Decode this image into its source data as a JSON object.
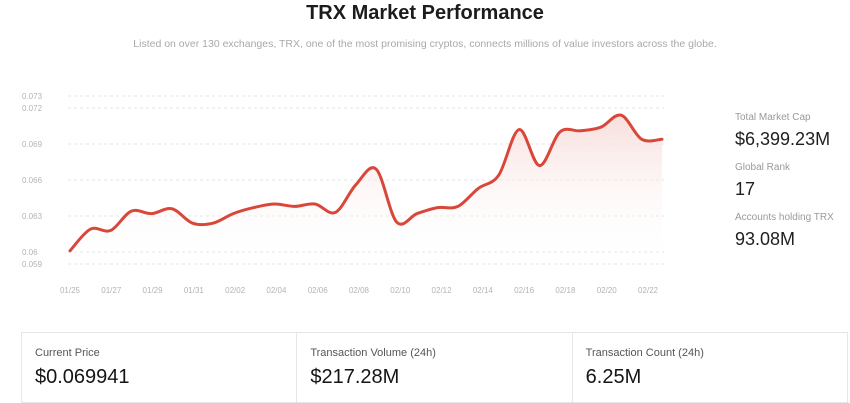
{
  "header": {
    "title": "TRX Market Performance",
    "subtitle": "Listed on over 130 exchanges, TRX, one of the most promising cryptos, connects millions of value investors across the globe."
  },
  "side_stats": [
    {
      "label": "Total Market Cap",
      "value": "$6,399.23M"
    },
    {
      "label": "Global Rank",
      "value": "17"
    },
    {
      "label": "Accounts holding TRX",
      "value": "93.08M"
    }
  ],
  "cards": [
    {
      "label": "Current Price",
      "value": "$0.069941"
    },
    {
      "label": "Transaction Volume (24h)",
      "value": "$217.28M"
    },
    {
      "label": "Transaction Count (24h)",
      "value": "6.25M"
    }
  ],
  "colors": {
    "line": "#d9473b",
    "grid": "#e5e5e5",
    "area_top": "#f6d9d6"
  },
  "chart_data": {
    "type": "area",
    "title": "",
    "xlabel": "",
    "ylabel": "",
    "ylim": [
      0.059,
      0.073
    ],
    "yticks": [
      "0.073",
      "0.072",
      "0.069",
      "0.066",
      "0.063",
      "0.06",
      "0.059"
    ],
    "ytick_values": [
      0.073,
      0.072,
      0.069,
      0.066,
      0.063,
      0.06,
      0.059
    ],
    "xticks": [
      "01/25",
      "01/27",
      "01/29",
      "01/31",
      "02/02",
      "02/04",
      "02/06",
      "02/08",
      "02/10",
      "02/12",
      "02/14",
      "02/16",
      "02/18",
      "02/20",
      "02/22"
    ],
    "grid": true,
    "series": [
      {
        "values": [
          0.0601,
          0.0619,
          0.0618,
          0.0634,
          0.0632,
          0.0636,
          0.0624,
          0.0624,
          0.0632,
          0.0637,
          0.064,
          0.0638,
          0.064,
          0.0633,
          0.0656,
          0.0669,
          0.0625,
          0.0632,
          0.0637,
          0.0638,
          0.0653,
          0.0664,
          0.0702,
          0.0672,
          0.07,
          0.0701,
          0.0704,
          0.0714,
          0.0694,
          0.0694
        ]
      }
    ]
  }
}
